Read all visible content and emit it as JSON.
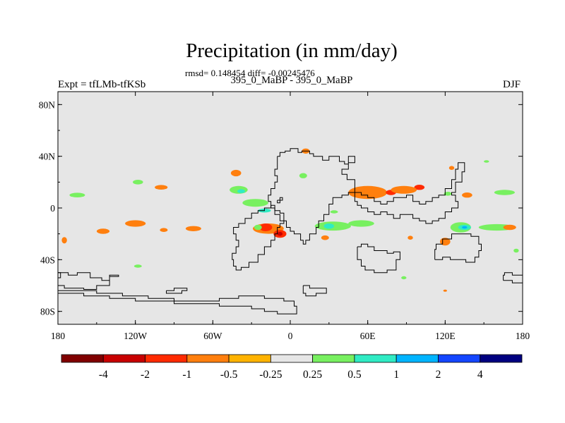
{
  "header": {
    "title": "Precipitation (in mm/day)",
    "stats": "rmsd= 0.148454 diff= -0.00245476",
    "subtitle": "395_0_MaBP - 395_0_MaBP",
    "left_label": "Expt = tfLMb-tfKSb",
    "right_label": "DJF"
  },
  "chart_data": {
    "type": "heatmap",
    "title": "Precipitation (in mm/day)",
    "subtitle": "395_0_MaBP - 395_0_MaBP",
    "stats": {
      "rmsd": 0.148454,
      "diff": -0.00245476
    },
    "experiment": "tfLMb-tfKSb",
    "season": "DJF",
    "x_axis": {
      "range": [
        -180,
        180
      ],
      "ticks": [
        -180,
        -120,
        -60,
        0,
        60,
        120,
        180
      ],
      "tick_labels": [
        "180",
        "120W",
        "60W",
        "0",
        "60E",
        "120E",
        "180"
      ]
    },
    "y_axis": {
      "range": [
        -90,
        90
      ],
      "ticks": [
        80,
        40,
        0,
        -40,
        -80
      ],
      "tick_labels": [
        "80N",
        "40N",
        "0",
        "40S",
        "80S"
      ]
    },
    "background_color": "#e6e6e6",
    "levels": [
      "-4",
      "-2",
      "-1",
      "-0.5",
      "-0.25",
      "0.25",
      "0.5",
      "1",
      "2",
      "4"
    ],
    "colors": [
      "#800000",
      "#c80000",
      "#ff2a00",
      "#ff7f0e",
      "#ffb300",
      "#e6e6e6",
      "#78f060",
      "#30ebc4",
      "#00b4ff",
      "#1446ff",
      "#000080"
    ],
    "anomalies": [
      {
        "lon": -165,
        "lat": 10,
        "rx": 6,
        "ry": 1.8,
        "level": 0.5
      },
      {
        "lon": -175,
        "lat": -25,
        "rx": 2,
        "ry": 2.5,
        "level": -0.5
      },
      {
        "lon": -145,
        "lat": -18,
        "rx": 5,
        "ry": 2,
        "level": -0.5
      },
      {
        "lon": -120,
        "lat": -12,
        "rx": 8,
        "ry": 2.5,
        "level": -0.5
      },
      {
        "lon": -98,
        "lat": -17,
        "rx": 3,
        "ry": 1.5,
        "level": -0.5
      },
      {
        "lon": -75,
        "lat": -16,
        "rx": 6,
        "ry": 2,
        "level": -0.5
      },
      {
        "lon": -100,
        "lat": 16,
        "rx": 5,
        "ry": 1.8,
        "level": -0.5
      },
      {
        "lon": -118,
        "lat": 20,
        "rx": 4,
        "ry": 1.8,
        "level": 0.5
      },
      {
        "lon": -42,
        "lat": 27,
        "rx": 4,
        "ry": 2.5,
        "level": -0.5
      },
      {
        "lon": -40,
        "lat": 14,
        "rx": 7,
        "ry": 3,
        "level": 0.5
      },
      {
        "lon": -38,
        "lat": 13,
        "rx": 3,
        "ry": 1.5,
        "level": 1
      },
      {
        "lon": -27,
        "lat": 4,
        "rx": 10,
        "ry": 3,
        "level": 0.5
      },
      {
        "lon": -20,
        "lat": -2,
        "rx": 5,
        "ry": 1.5,
        "level": 1
      },
      {
        "lon": -17,
        "lat": -16,
        "rx": 12,
        "ry": 4,
        "level": -0.5
      },
      {
        "lon": -19,
        "lat": -15,
        "rx": 5,
        "ry": 3,
        "level": -1
      },
      {
        "lon": -8,
        "lat": -20,
        "rx": 5,
        "ry": 3,
        "level": -1
      },
      {
        "lon": -8,
        "lat": -20,
        "rx": 2,
        "ry": 1.5,
        "level": -2
      },
      {
        "lon": -25,
        "lat": -15,
        "rx": 3,
        "ry": 2,
        "level": 0.5
      },
      {
        "lon": 12,
        "lat": 44,
        "rx": 3,
        "ry": 2,
        "level": -0.5
      },
      {
        "lon": 10,
        "lat": 25,
        "rx": 3,
        "ry": 2,
        "level": 0.5
      },
      {
        "lon": 33,
        "lat": -14,
        "rx": 14,
        "ry": 3.5,
        "level": 0.5
      },
      {
        "lon": 30,
        "lat": -14,
        "rx": 4,
        "ry": 2,
        "level": 1
      },
      {
        "lon": 27,
        "lat": -23,
        "rx": 3,
        "ry": 1.8,
        "level": -0.5
      },
      {
        "lon": 55,
        "lat": -12,
        "rx": 10,
        "ry": 2.5,
        "level": 0.5
      },
      {
        "lon": 34,
        "lat": -3,
        "rx": 3,
        "ry": 1.2,
        "level": 0.5
      },
      {
        "lon": 60,
        "lat": 12,
        "rx": 15,
        "ry": 5,
        "level": -0.5
      },
      {
        "lon": 78,
        "lat": 12,
        "rx": 4,
        "ry": 2,
        "level": -1
      },
      {
        "lon": 100,
        "lat": 16,
        "rx": 4,
        "ry": 2,
        "level": -1
      },
      {
        "lon": 88,
        "lat": 14,
        "rx": 10,
        "ry": 3,
        "level": -0.5
      },
      {
        "lon": 137,
        "lat": 10,
        "rx": 4,
        "ry": 2,
        "level": -0.5
      },
      {
        "lon": 122,
        "lat": 11,
        "rx": 3,
        "ry": 1.5,
        "level": 0.5
      },
      {
        "lon": 125,
        "lat": 31,
        "rx": 2,
        "ry": 1.5,
        "level": -0.5
      },
      {
        "lon": 152,
        "lat": 36,
        "rx": 2,
        "ry": 1,
        "level": 0.5
      },
      {
        "lon": 132,
        "lat": -15,
        "rx": 8,
        "ry": 4,
        "level": 0.5
      },
      {
        "lon": 135,
        "lat": -15,
        "rx": 5,
        "ry": 2,
        "level": 1
      },
      {
        "lon": 135,
        "lat": -15,
        "rx": 2,
        "ry": 1,
        "level": 2
      },
      {
        "lon": 160,
        "lat": -15,
        "rx": 14,
        "ry": 2.5,
        "level": 0.5
      },
      {
        "lon": 120,
        "lat": -26,
        "rx": 4,
        "ry": 3,
        "level": -0.5
      },
      {
        "lon": 170,
        "lat": -15,
        "rx": 5,
        "ry": 2,
        "level": -0.5
      },
      {
        "lon": 166,
        "lat": 12,
        "rx": 8,
        "ry": 2,
        "level": 0.5
      },
      {
        "lon": 175,
        "lat": -33,
        "rx": 2,
        "ry": 1.5,
        "level": 0.5
      },
      {
        "lon": 93,
        "lat": -23,
        "rx": 2,
        "ry": 1.5,
        "level": -0.5
      },
      {
        "lon": -118,
        "lat": -45,
        "rx": 3,
        "ry": 1.2,
        "level": 0.5
      },
      {
        "lon": 88,
        "lat": -54,
        "rx": 2,
        "ry": 1.2,
        "level": 0.5
      },
      {
        "lon": 120,
        "lat": -64,
        "rx": 1.5,
        "ry": 0.8,
        "level": -0.5
      }
    ],
    "continents": [
      [
        [
          -10,
          40
        ],
        [
          -8,
          43
        ],
        [
          -4,
          44
        ],
        [
          0,
          44
        ],
        [
          0,
          46
        ],
        [
          3,
          46
        ],
        [
          6,
          43
        ],
        [
          9,
          44
        ],
        [
          14,
          44
        ],
        [
          15,
          42
        ],
        [
          18,
          40
        ],
        [
          22,
          40
        ],
        [
          25,
          37
        ],
        [
          28,
          37
        ],
        [
          30,
          40
        ],
        [
          33,
          40
        ],
        [
          38,
          36
        ],
        [
          42,
          34
        ],
        [
          45,
          40
        ],
        [
          50,
          40
        ],
        [
          50,
          35
        ],
        [
          45,
          30
        ],
        [
          40,
          26
        ],
        [
          44,
          22
        ],
        [
          50,
          18
        ],
        [
          50,
          12
        ],
        [
          45,
          10
        ],
        [
          40,
          8
        ],
        [
          33,
          3
        ],
        [
          30,
          0
        ],
        [
          30,
          -5
        ],
        [
          26,
          -10
        ],
        [
          22,
          -15
        ],
        [
          20,
          -20
        ],
        [
          15,
          -25
        ],
        [
          12,
          -28
        ],
        [
          10,
          -25
        ],
        [
          8,
          -20
        ],
        [
          3,
          -18
        ],
        [
          0,
          -15
        ],
        [
          -3,
          -10
        ],
        [
          -8,
          -5
        ],
        [
          -12,
          0
        ],
        [
          -15,
          5
        ],
        [
          -17,
          10
        ],
        [
          -15,
          15
        ],
        [
          -12,
          20
        ],
        [
          -10,
          25
        ],
        [
          -12,
          30
        ],
        [
          -10,
          35
        ],
        [
          -10,
          40
        ]
      ],
      [
        [
          50,
          12
        ],
        [
          55,
          10
        ],
        [
          60,
          8
        ],
        [
          65,
          5
        ],
        [
          70,
          3
        ],
        [
          75,
          5
        ],
        [
          80,
          8
        ],
        [
          85,
          8
        ],
        [
          90,
          10
        ],
        [
          95,
          5
        ],
        [
          100,
          3
        ],
        [
          105,
          5
        ],
        [
          110,
          8
        ],
        [
          115,
          10
        ],
        [
          120,
          15
        ],
        [
          125,
          22
        ],
        [
          128,
          30
        ],
        [
          130,
          35
        ],
        [
          135,
          35
        ],
        [
          135,
          28
        ],
        [
          133,
          20
        ],
        [
          128,
          12
        ],
        [
          125,
          10
        ],
        [
          128,
          5
        ],
        [
          130,
          0
        ],
        [
          125,
          -3
        ],
        [
          120,
          -8
        ],
        [
          115,
          -10
        ],
        [
          110,
          -12
        ],
        [
          105,
          -10
        ],
        [
          100,
          -8
        ],
        [
          95,
          -5
        ],
        [
          85,
          -8
        ],
        [
          80,
          -5
        ],
        [
          75,
          -3
        ],
        [
          70,
          -5
        ],
        [
          65,
          -3
        ],
        [
          60,
          0
        ],
        [
          55,
          2
        ],
        [
          52,
          5
        ],
        [
          50,
          8
        ],
        [
          50,
          12
        ]
      ],
      [
        [
          -18,
          0
        ],
        [
          -15,
          2
        ],
        [
          -12,
          -2
        ],
        [
          -8,
          -4
        ],
        [
          -5,
          -5
        ],
        [
          -5,
          -12
        ],
        [
          -8,
          -15
        ],
        [
          -10,
          -20
        ],
        [
          -12,
          -25
        ],
        [
          -15,
          -30
        ],
        [
          -20,
          -36
        ],
        [
          -25,
          -42
        ],
        [
          -32,
          -46
        ],
        [
          -38,
          -48
        ],
        [
          -42,
          -45
        ],
        [
          -44,
          -40
        ],
        [
          -45,
          -35
        ],
        [
          -42,
          -30
        ],
        [
          -40,
          -25
        ],
        [
          -42,
          -20
        ],
        [
          -44,
          -15
        ],
        [
          -40,
          -12
        ],
        [
          -35,
          -8
        ],
        [
          -30,
          -4
        ],
        [
          -25,
          -2
        ],
        [
          -20,
          0
        ],
        [
          -18,
          0
        ]
      ],
      [
        [
          52,
          -30
        ],
        [
          55,
          -28
        ],
        [
          60,
          -30
        ],
        [
          65,
          -33
        ],
        [
          70,
          -33
        ],
        [
          75,
          -35
        ],
        [
          80,
          -34
        ],
        [
          85,
          -40
        ],
        [
          82,
          -48
        ],
        [
          75,
          -50
        ],
        [
          65,
          -48
        ],
        [
          58,
          -45
        ],
        [
          55,
          -40
        ],
        [
          52,
          -35
        ],
        [
          52,
          -30
        ]
      ],
      [
        [
          112,
          -40
        ],
        [
          118,
          -38
        ],
        [
          124,
          -40
        ],
        [
          130,
          -40
        ],
        [
          136,
          -42
        ],
        [
          143,
          -38
        ],
        [
          146,
          -33
        ],
        [
          148,
          -28
        ],
        [
          146,
          -22
        ],
        [
          140,
          -20
        ],
        [
          132,
          -20
        ],
        [
          125,
          -24
        ],
        [
          118,
          -28
        ],
        [
          113,
          -32
        ],
        [
          112,
          -40
        ]
      ],
      [
        [
          -180,
          -50
        ],
        [
          -172,
          -52
        ],
        [
          -165,
          -50
        ],
        [
          -155,
          -54
        ],
        [
          -146,
          -56
        ],
        [
          -140,
          -52
        ],
        [
          -133,
          -53
        ],
        [
          -140,
          -60
        ],
        [
          -150,
          -63
        ],
        [
          -160,
          -62
        ],
        [
          -175,
          -60
        ],
        [
          -180,
          -56
        ],
        [
          -180,
          -50
        ]
      ],
      [
        [
          -180,
          -66
        ],
        [
          -160,
          -68
        ],
        [
          -140,
          -70
        ],
        [
          -120,
          -72
        ],
        [
          -90,
          -74
        ],
        [
          -70,
          -74
        ],
        [
          -55,
          -76
        ],
        [
          -30,
          -78
        ],
        [
          -20,
          -80
        ],
        [
          -10,
          -82
        ],
        [
          0,
          -82
        ],
        [
          5,
          -76
        ],
        [
          3,
          -72
        ],
        [
          -5,
          -70
        ],
        [
          -20,
          -68
        ],
        [
          -40,
          -70
        ],
        [
          -55,
          -72
        ],
        [
          -70,
          -72
        ],
        [
          -90,
          -70
        ],
        [
          -110,
          -68
        ],
        [
          -130,
          -66
        ],
        [
          -150,
          -64
        ],
        [
          -170,
          -64
        ],
        [
          -180,
          -66
        ]
      ],
      [
        [
          -96,
          -64
        ],
        [
          -90,
          -62
        ],
        [
          -84,
          -62
        ],
        [
          -80,
          -64
        ],
        [
          -84,
          -66
        ],
        [
          -92,
          -66
        ],
        [
          -96,
          -64
        ]
      ],
      [
        [
          165,
          -56
        ],
        [
          172,
          -58
        ],
        [
          180,
          -58
        ],
        [
          180,
          -52
        ],
        [
          172,
          -50
        ],
        [
          166,
          -52
        ],
        [
          165,
          -56
        ]
      ],
      [
        [
          -180,
          -50
        ],
        [
          -178,
          -54
        ],
        [
          -180,
          -56
        ]
      ],
      [
        [
          10,
          -60
        ],
        [
          15,
          -62
        ],
        [
          25,
          -62
        ],
        [
          28,
          -66
        ],
        [
          20,
          -68
        ],
        [
          12,
          -66
        ],
        [
          10,
          -60
        ]
      ],
      [
        [
          -10,
          6
        ],
        [
          -8,
          8
        ],
        [
          -6,
          6
        ],
        [
          -8,
          4
        ],
        [
          -10,
          6
        ]
      ]
    ]
  }
}
